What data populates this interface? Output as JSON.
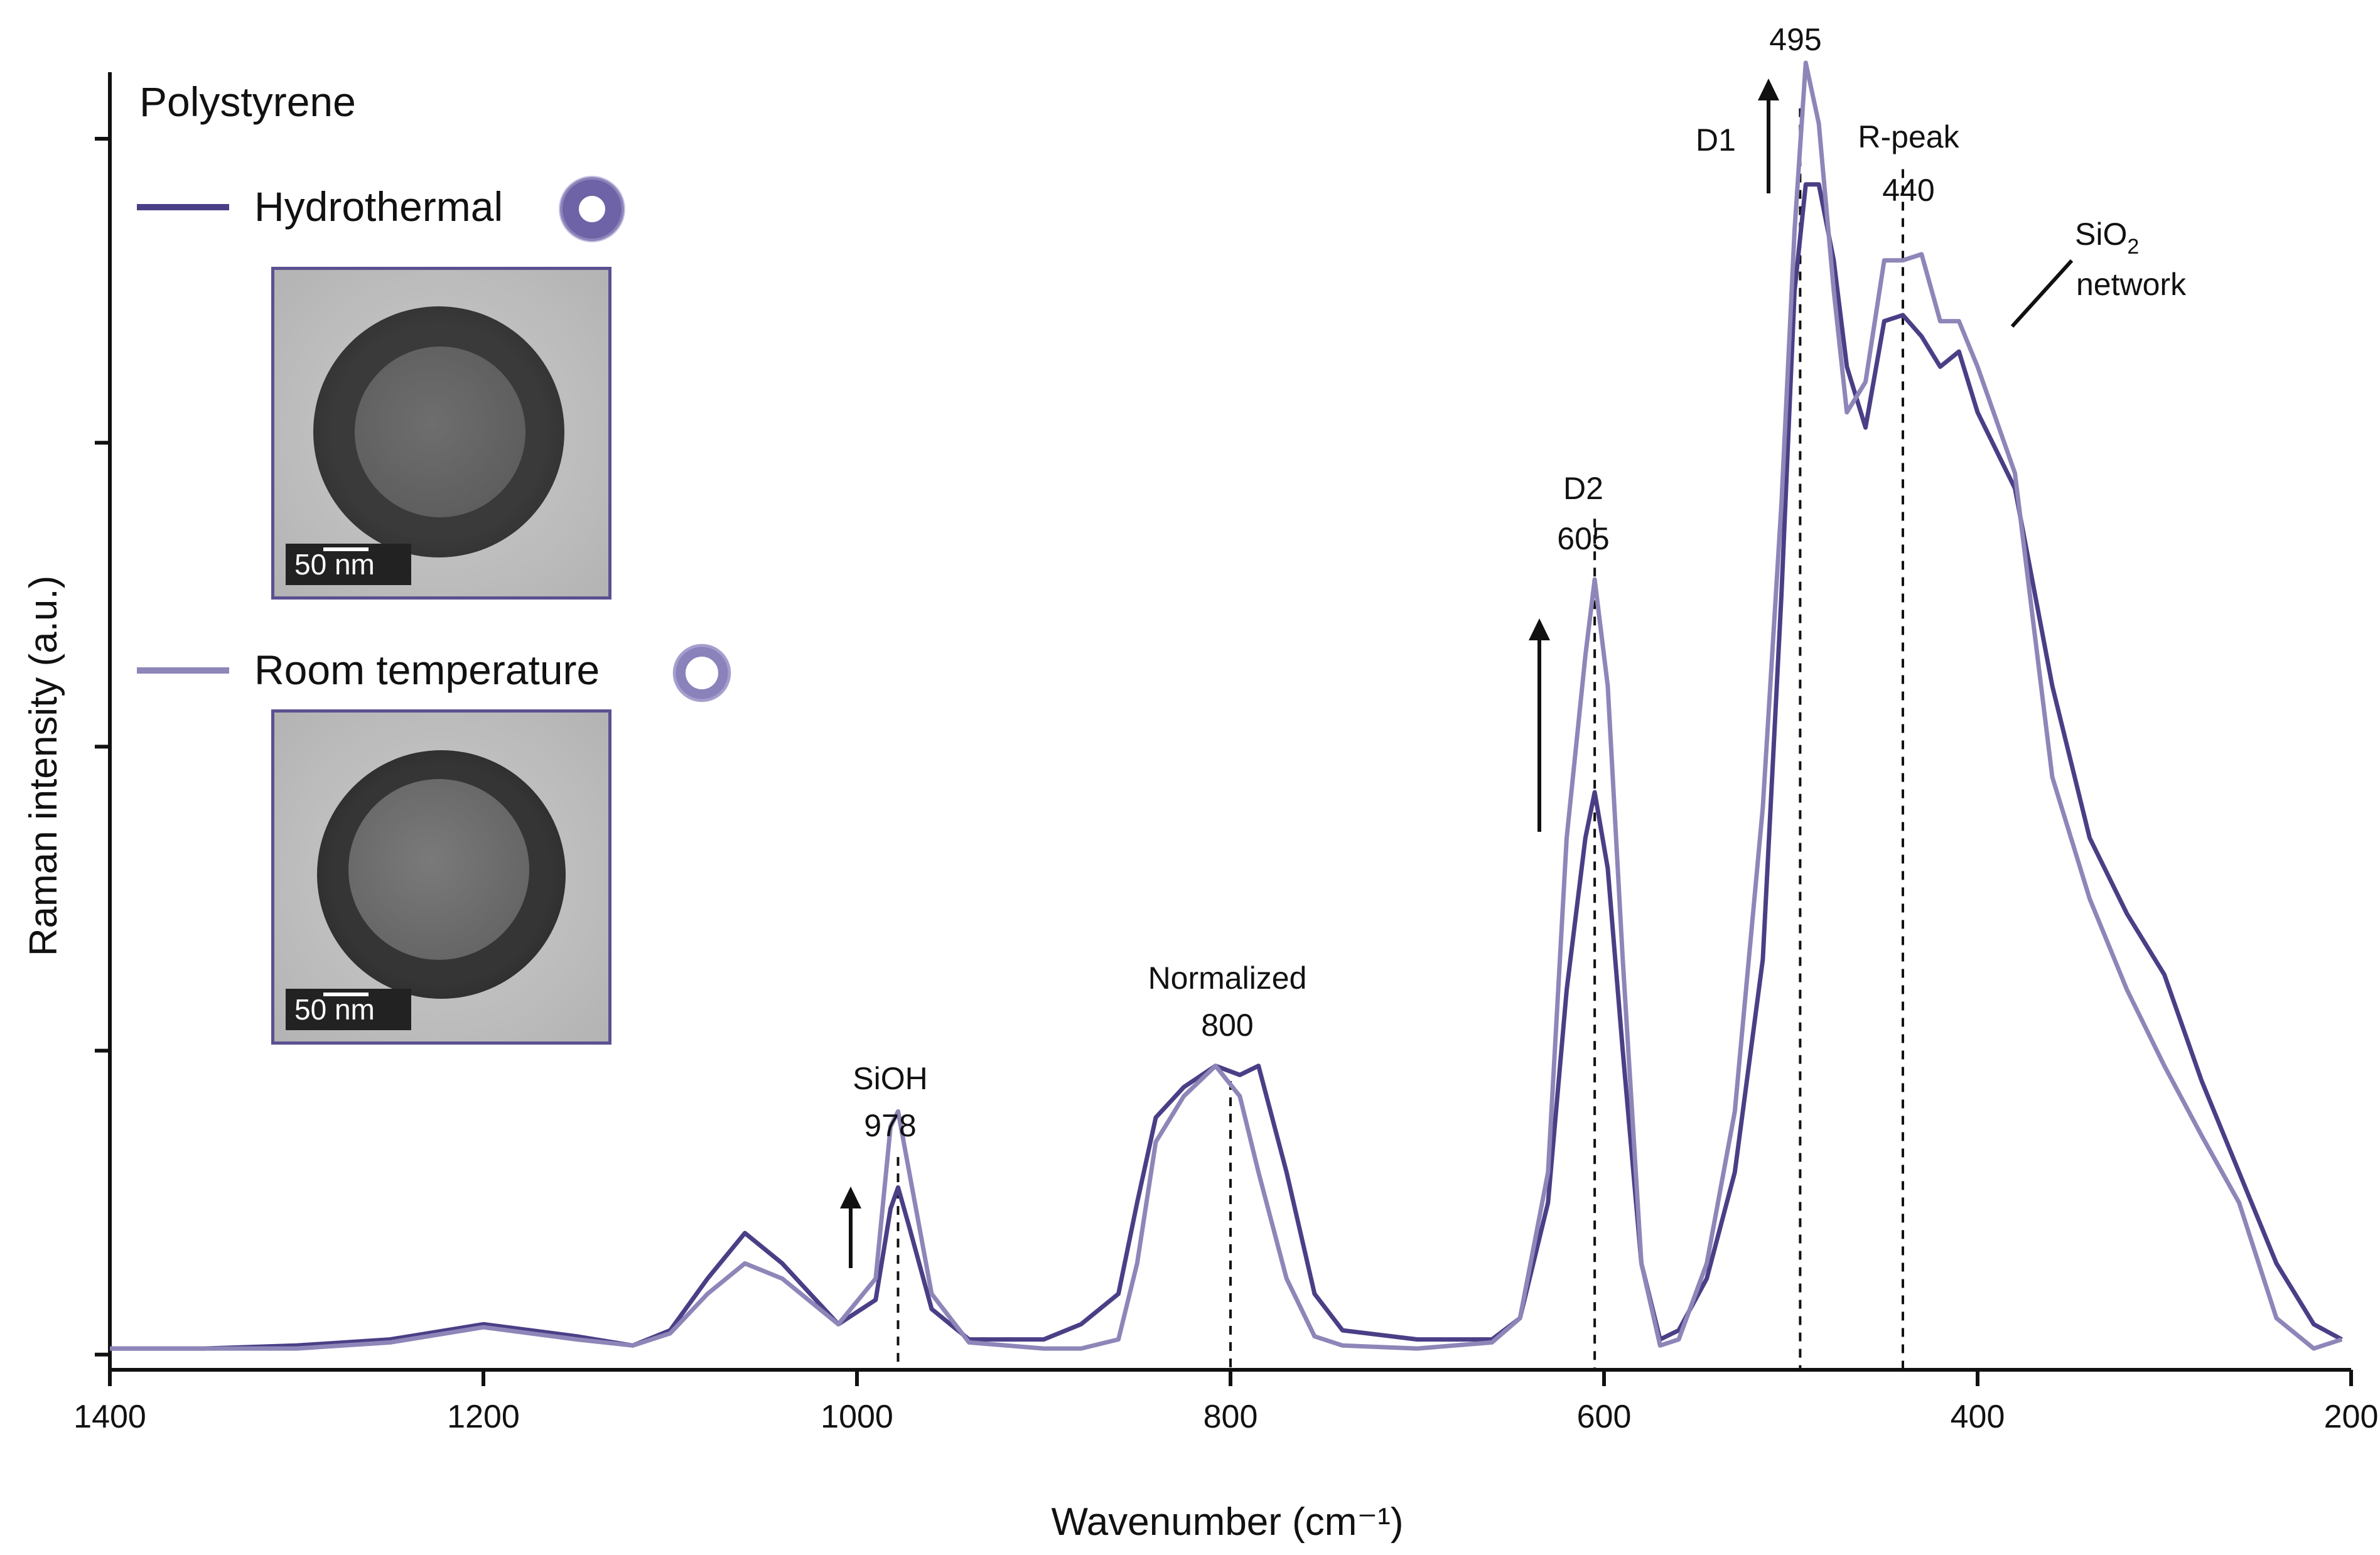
{
  "chart_data": {
    "type": "line",
    "title": "Polystyrene",
    "xlabel": "Wavenumber (cm⁻¹)",
    "ylabel": "Raman intensity (a.u.)",
    "xlim": [
      1400,
      200
    ],
    "x_reversed": true,
    "ylim": [
      -0.05,
      4.25
    ],
    "xticks": [
      "1400",
      "1200",
      "1000",
      "800",
      "600",
      "400",
      "200"
    ],
    "y_tick_labels_shown": false,
    "legend": {
      "placement": "top-left"
    },
    "series": [
      {
        "name": "Hydrothermal",
        "color": "#4a3f86",
        "points": [
          [
            1400,
            0.02
          ],
          [
            1350,
            0.02
          ],
          [
            1300,
            0.03
          ],
          [
            1250,
            0.05
          ],
          [
            1200,
            0.1
          ],
          [
            1150,
            0.06
          ],
          [
            1120,
            0.03
          ],
          [
            1100,
            0.08
          ],
          [
            1080,
            0.25
          ],
          [
            1060,
            0.4
          ],
          [
            1040,
            0.3
          ],
          [
            1010,
            0.1
          ],
          [
            990,
            0.18
          ],
          [
            982,
            0.48
          ],
          [
            978,
            0.55
          ],
          [
            972,
            0.42
          ],
          [
            960,
            0.15
          ],
          [
            940,
            0.05
          ],
          [
            900,
            0.05
          ],
          [
            880,
            0.1
          ],
          [
            860,
            0.2
          ],
          [
            850,
            0.5
          ],
          [
            840,
            0.78
          ],
          [
            825,
            0.88
          ],
          [
            808,
            0.95
          ],
          [
            795,
            0.92
          ],
          [
            785,
            0.95
          ],
          [
            770,
            0.6
          ],
          [
            755,
            0.2
          ],
          [
            740,
            0.08
          ],
          [
            700,
            0.05
          ],
          [
            660,
            0.05
          ],
          [
            645,
            0.12
          ],
          [
            630,
            0.5
          ],
          [
            620,
            1.2
          ],
          [
            610,
            1.7
          ],
          [
            605,
            1.85
          ],
          [
            598,
            1.6
          ],
          [
            590,
            1.0
          ],
          [
            580,
            0.3
          ],
          [
            570,
            0.05
          ],
          [
            560,
            0.08
          ],
          [
            545,
            0.25
          ],
          [
            530,
            0.6
          ],
          [
            515,
            1.3
          ],
          [
            505,
            2.5
          ],
          [
            498,
            3.5
          ],
          [
            492,
            3.85
          ],
          [
            485,
            3.85
          ],
          [
            477,
            3.6
          ],
          [
            470,
            3.25
          ],
          [
            460,
            3.05
          ],
          [
            450,
            3.4
          ],
          [
            440,
            3.42
          ],
          [
            430,
            3.35
          ],
          [
            420,
            3.25
          ],
          [
            410,
            3.3
          ],
          [
            400,
            3.1
          ],
          [
            380,
            2.85
          ],
          [
            360,
            2.2
          ],
          [
            340,
            1.7
          ],
          [
            320,
            1.45
          ],
          [
            300,
            1.25
          ],
          [
            280,
            0.9
          ],
          [
            260,
            0.6
          ],
          [
            240,
            0.3
          ],
          [
            220,
            0.1
          ],
          [
            205,
            0.05
          ]
        ]
      },
      {
        "name": "Room temperature",
        "color": "#8d86b8",
        "points": [
          [
            1400,
            0.02
          ],
          [
            1350,
            0.02
          ],
          [
            1300,
            0.02
          ],
          [
            1250,
            0.04
          ],
          [
            1200,
            0.09
          ],
          [
            1150,
            0.05
          ],
          [
            1120,
            0.03
          ],
          [
            1100,
            0.07
          ],
          [
            1080,
            0.2
          ],
          [
            1060,
            0.3
          ],
          [
            1040,
            0.25
          ],
          [
            1010,
            0.1
          ],
          [
            990,
            0.25
          ],
          [
            982,
            0.75
          ],
          [
            978,
            0.8
          ],
          [
            972,
            0.6
          ],
          [
            960,
            0.2
          ],
          [
            940,
            0.04
          ],
          [
            900,
            0.02
          ],
          [
            880,
            0.02
          ],
          [
            860,
            0.05
          ],
          [
            850,
            0.3
          ],
          [
            840,
            0.7
          ],
          [
            825,
            0.85
          ],
          [
            808,
            0.95
          ],
          [
            795,
            0.85
          ],
          [
            785,
            0.6
          ],
          [
            770,
            0.25
          ],
          [
            755,
            0.06
          ],
          [
            740,
            0.03
          ],
          [
            700,
            0.02
          ],
          [
            660,
            0.04
          ],
          [
            645,
            0.12
          ],
          [
            630,
            0.6
          ],
          [
            620,
            1.7
          ],
          [
            610,
            2.3
          ],
          [
            605,
            2.55
          ],
          [
            598,
            2.2
          ],
          [
            590,
            1.3
          ],
          [
            580,
            0.3
          ],
          [
            570,
            0.03
          ],
          [
            560,
            0.05
          ],
          [
            545,
            0.3
          ],
          [
            530,
            0.8
          ],
          [
            515,
            1.8
          ],
          [
            505,
            2.8
          ],
          [
            498,
            3.7
          ],
          [
            492,
            4.25
          ],
          [
            485,
            4.05
          ],
          [
            477,
            3.5
          ],
          [
            470,
            3.1
          ],
          [
            460,
            3.2
          ],
          [
            450,
            3.6
          ],
          [
            440,
            3.6
          ],
          [
            430,
            3.62
          ],
          [
            420,
            3.4
          ],
          [
            410,
            3.4
          ],
          [
            400,
            3.25
          ],
          [
            380,
            2.9
          ],
          [
            360,
            1.9
          ],
          [
            340,
            1.5
          ],
          [
            320,
            1.2
          ],
          [
            300,
            0.95
          ],
          [
            280,
            0.72
          ],
          [
            260,
            0.5
          ],
          [
            240,
            0.12
          ],
          [
            220,
            0.02
          ],
          [
            205,
            0.05
          ]
        ]
      }
    ],
    "annotations": [
      {
        "labels": [
          "SiOH",
          "978"
        ],
        "x": 978,
        "line_top": 0.65
      },
      {
        "labels": [
          "Normalized",
          "800"
        ],
        "x": 800,
        "line_top": 0.9
      },
      {
        "labels": [
          "D2",
          "605"
        ],
        "x": 605,
        "line_top": 2.75
      },
      {
        "labels": [
          "D1"
        ],
        "x": 495,
        "line_top": 4.1
      },
      {
        "labels": [
          "495"
        ],
        "x": 495
      },
      {
        "labels": [
          "R-peak",
          "440"
        ],
        "x": 440,
        "line_top": 3.9
      },
      {
        "labels": [
          "SiO",
          "network"
        ],
        "subscript": "2",
        "x": 370
      }
    ]
  }
}
